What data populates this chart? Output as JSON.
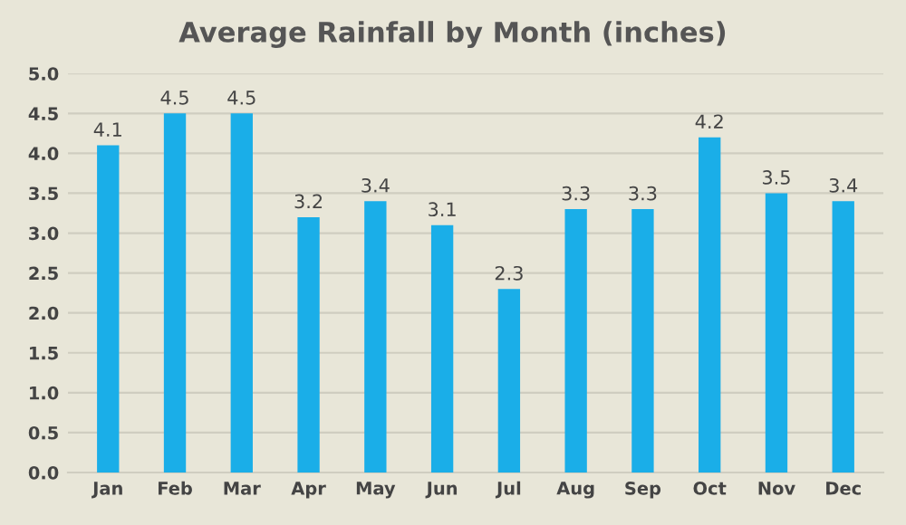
{
  "chart_data": {
    "type": "bar",
    "title": "Average Rainfall by Month (inches)",
    "categories": [
      "Jan",
      "Feb",
      "Mar",
      "Apr",
      "May",
      "Jun",
      "Jul",
      "Aug",
      "Sep",
      "Oct",
      "Nov",
      "Dec"
    ],
    "values": [
      4.1,
      4.5,
      4.5,
      3.2,
      3.4,
      3.1,
      2.3,
      3.3,
      3.3,
      4.2,
      3.5,
      3.4
    ],
    "color": "#1aaee8",
    "ylim": [
      0,
      5
    ],
    "yticks": [
      {
        "value": 0,
        "label": "0.0"
      },
      0.5,
      {
        "value": 1,
        "label": "1.0"
      },
      1.5,
      {
        "value": 2,
        "label": "2.0"
      },
      2.5,
      {
        "value": 3,
        "label": "3.0"
      },
      3.5,
      {
        "value": 4,
        "label": "4.0"
      },
      4.5,
      {
        "value": 5,
        "label": "5.0"
      }
    ],
    "grid": "y",
    "data_labels": true
  }
}
